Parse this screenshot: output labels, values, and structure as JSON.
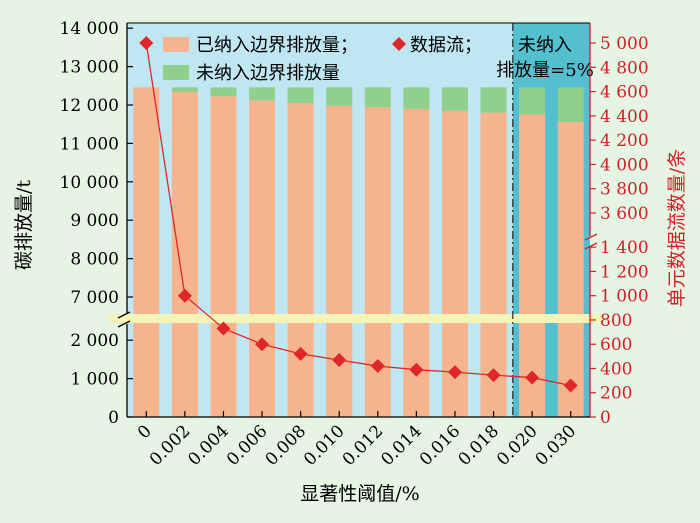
{
  "colors": {
    "page_bg": "#e6f4e4",
    "plot_bg": "#bfe6f1",
    "plot_bg_shaded": "#54c0cf",
    "included": "#f6b48e",
    "excluded": "#8fd18c",
    "dataflow": "#e0262a",
    "break_band": "#f4f4b6",
    "axis_left": "#000000",
    "axis_right": "#d02026"
  },
  "chart_data": {
    "type": "bar",
    "categories": [
      "0",
      "0.002",
      "0.004",
      "0.006",
      "0.008",
      "0.010",
      "0.012",
      "0.014",
      "0.016",
      "0.018",
      "0.020",
      "0.030"
    ],
    "xlabel": "显著性阈值/%",
    "ylabel_left": "碳排放量/t",
    "ylabel_right": "单元数据流数量/条",
    "stacked": true,
    "series": [
      {
        "name": "已纳入边界排放量",
        "values": [
          12460,
          12340,
          12230,
          12120,
          12050,
          11980,
          11940,
          11900,
          11850,
          11800,
          11760,
          11560
        ]
      },
      {
        "name": "未纳入边界排放量",
        "values": [
          0,
          120,
          230,
          340,
          410,
          480,
          520,
          560,
          610,
          660,
          700,
          900
        ]
      }
    ],
    "line_series": {
      "name": "数据流",
      "axis": "right",
      "values": [
        5000,
        1000,
        730,
        600,
        520,
        470,
        420,
        390,
        370,
        345,
        325,
        260
      ]
    },
    "left_axis": {
      "break_between": [
        2500,
        6500
      ],
      "lower_ticks": [
        0,
        1000,
        2000
      ],
      "upper_ticks": [
        7000,
        8000,
        9000,
        10000,
        11000,
        12000,
        13000,
        14000
      ],
      "tick_labels": {
        "0": "0",
        "1000": "1 000",
        "2000": "2 000",
        "7000": "7 000",
        "8000": "8 000",
        "9000": "9 000",
        "10000": "10 000",
        "11000": "11 000",
        "12000": "12 000",
        "13000": "13 000",
        "14000": "14 000"
      }
    },
    "right_axis": {
      "break_between": [
        1400,
        3600
      ],
      "lower_ticks": [
        0,
        200,
        400,
        600,
        800,
        1000,
        1200,
        1400
      ],
      "upper_ticks": [
        3600,
        3800,
        4000,
        4200,
        4400,
        4600,
        4800,
        5000
      ],
      "tick_labels": {
        "0": "0",
        "200": "200",
        "400": "400",
        "600": "600",
        "800": "800",
        "1000": "1 000",
        "1200": "1 200",
        "1400": "1 400",
        "3600": "3 600",
        "3800": "3 800",
        "4000": "4 000",
        "4200": "4 200",
        "4400": "4 400",
        "4600": "4 600",
        "4800": "4 800",
        "5000": "5 000"
      }
    },
    "legend": {
      "placement": "top-left",
      "line1": "已纳入边界排放量；",
      "line1_marker": "数据流；",
      "line2": "未纳入边界排放量"
    },
    "annotation": {
      "line1": "未纳入",
      "line2": "排放量=5%",
      "threshold_between": [
        "0.018",
        "0.020"
      ]
    }
  }
}
